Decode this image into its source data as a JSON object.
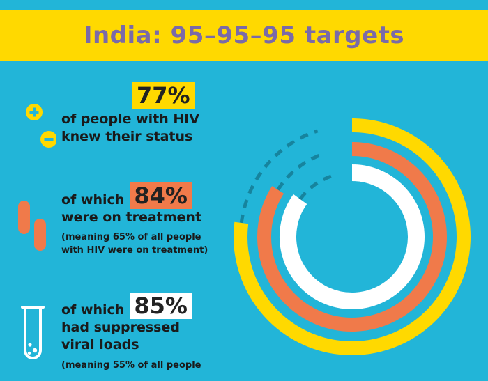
{
  "title": "India: 95–95–95 targets",
  "stats": [
    {
      "percent": "77%",
      "lines": [
        "of people with HIV",
        "knew their status"
      ],
      "note": [],
      "color": "#ffd900"
    },
    {
      "percent": "84%",
      "lines": [
        "of which",
        "were on treatment"
      ],
      "note": [
        "(meaning 65% of all people",
        "with HIV were on treatment)"
      ],
      "color": "#f07a4a"
    },
    {
      "percent": "85%",
      "lines": [
        "of which",
        "had suppressed",
        "viral loads"
      ],
      "note": [
        "(meaning 55% of all people"
      ],
      "color": "#ffffff"
    }
  ],
  "icons": [
    "plus-minus-icon",
    "pills-icon",
    "test-tube-icon"
  ],
  "chart_data": {
    "type": "radial-bar",
    "series": [
      {
        "value": 77,
        "color": "#ffd900"
      },
      {
        "value": 84,
        "color": "#f07a4a"
      },
      {
        "value": 85,
        "color": "#ffffff"
      }
    ],
    "target": 95,
    "max": 100
  }
}
